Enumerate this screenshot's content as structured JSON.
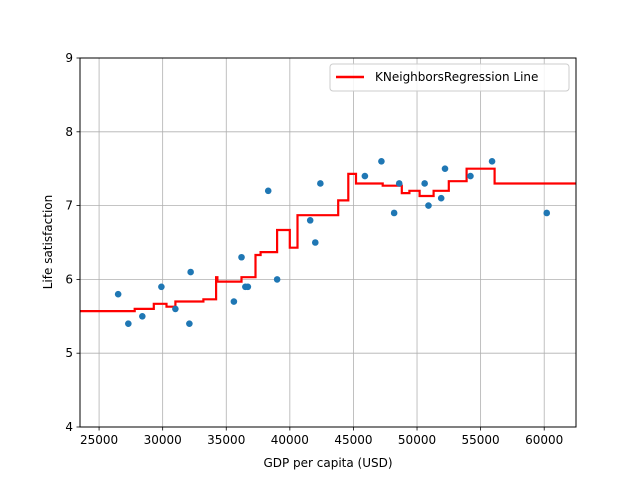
{
  "chart_data": {
    "type": "scatter",
    "xlabel": "GDP per capita (USD)",
    "ylabel": "Life satisfaction",
    "xlim": [
      23500,
      62500
    ],
    "ylim": [
      4,
      9
    ],
    "xticks": [
      25000,
      30000,
      35000,
      40000,
      45000,
      50000,
      55000,
      60000
    ],
    "yticks": [
      4,
      5,
      6,
      7,
      8,
      9
    ],
    "grid": true,
    "legend_position": "upper right",
    "colors": {
      "points": "#1f77b4",
      "line": "#ff0000",
      "grid": "#b0b0b0"
    },
    "scatter": {
      "x": [
        26500,
        27300,
        28400,
        29900,
        31000,
        32100,
        32200,
        35600,
        36200,
        36500,
        36700,
        38300,
        39000,
        41600,
        42000,
        42400,
        45900,
        47200,
        48600,
        48200,
        50600,
        50900,
        51900,
        52200,
        54200,
        55900,
        60200
      ],
      "y": [
        5.8,
        5.4,
        5.5,
        5.9,
        5.6,
        5.4,
        6.1,
        5.7,
        6.3,
        5.9,
        5.9,
        7.2,
        6.0,
        6.8,
        6.5,
        7.3,
        7.4,
        7.6,
        7.3,
        6.9,
        7.3,
        7.0,
        7.1,
        7.5,
        7.4,
        7.6,
        6.9
      ]
    },
    "series": [
      {
        "name": "KNeighborsRegression Line",
        "step_x": [
          23500,
          27800,
          28800,
          29300,
          30300,
          31000,
          33200,
          34200,
          34300,
          34400,
          36200,
          37300,
          37700,
          39000,
          40000,
          40500,
          40600,
          43800,
          44600,
          45200,
          47300,
          48800,
          49400,
          50200,
          51300,
          52500,
          53900,
          56100,
          62500
        ],
        "step_y": [
          5.57,
          5.6,
          5.6,
          5.67,
          5.63,
          5.7,
          5.73,
          6.03,
          5.97,
          5.97,
          6.03,
          6.33,
          6.37,
          6.67,
          6.43,
          6.43,
          6.87,
          7.07,
          7.43,
          7.3,
          7.27,
          7.17,
          7.2,
          7.13,
          7.2,
          7.33,
          7.5,
          7.3,
          7.3
        ]
      }
    ]
  }
}
